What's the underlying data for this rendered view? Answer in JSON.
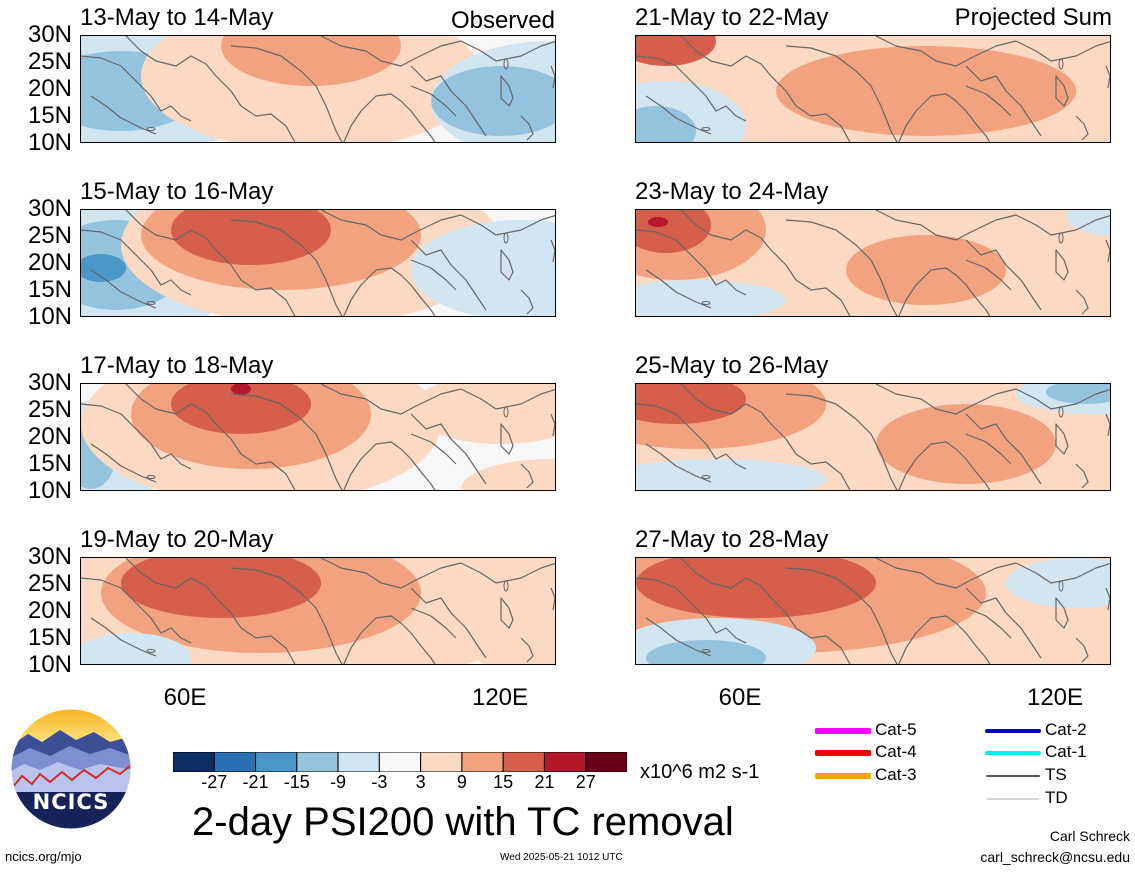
{
  "panels": [
    {
      "title": "13-May to 14-May",
      "corner": "Observed",
      "style": "a"
    },
    {
      "title": "21-May to 22-May",
      "corner": "Projected Sum",
      "style": "e"
    },
    {
      "title": "15-May to 16-May",
      "corner": "",
      "style": "b"
    },
    {
      "title": "23-May to 24-May",
      "corner": "",
      "style": "f"
    },
    {
      "title": "17-May to 18-May",
      "corner": "",
      "style": "c"
    },
    {
      "title": "25-May to 26-May",
      "corner": "",
      "style": "g"
    },
    {
      "title": "19-May to 20-May",
      "corner": "",
      "style": "d"
    },
    {
      "title": "27-May to 28-May",
      "corner": "",
      "style": "h"
    }
  ],
  "lat_labels": [
    "30N",
    "25N",
    "20N",
    "15N",
    "10N"
  ],
  "lon_labels": [
    "60E",
    "120E"
  ],
  "colorbar": {
    "colors": [
      "#0d2e63",
      "#2a6fb3",
      "#4a96c8",
      "#94c3de",
      "#d2e6f1",
      "#f7f7f7",
      "#fcd9c3",
      "#f2a27f",
      "#d65f4c",
      "#b4182b",
      "#6b0119"
    ],
    "ticks": [
      "-27",
      "-21",
      "-15",
      "-9",
      "-3",
      "3",
      "9",
      "15",
      "21",
      "27"
    ],
    "units": "x10^6 m2 s-1"
  },
  "title": "2-day PSI200 with TC removal",
  "legend": [
    {
      "label": "Cat-5",
      "color": "#ff00ff",
      "width": 6
    },
    {
      "label": "Cat-4",
      "color": "#ee0000",
      "width": 6
    },
    {
      "label": "Cat-3",
      "color": "#ffa500",
      "width": 6
    },
    {
      "label": "Cat-2",
      "color": "#0000cc",
      "width": 4
    },
    {
      "label": "Cat-1",
      "color": "#00eeee",
      "width": 4
    },
    {
      "label": "TS",
      "color": "#555555",
      "width": 2
    },
    {
      "label": "TD",
      "color": "#aaaaaa",
      "width": 1
    }
  ],
  "logo_text": "NCICS",
  "site": "ncics.org/mjo",
  "timestamp": "Wed 2025-05-21 1012 UTC",
  "author": "Carl Schreck",
  "email": "carl_schreck@ncsu.edu"
}
